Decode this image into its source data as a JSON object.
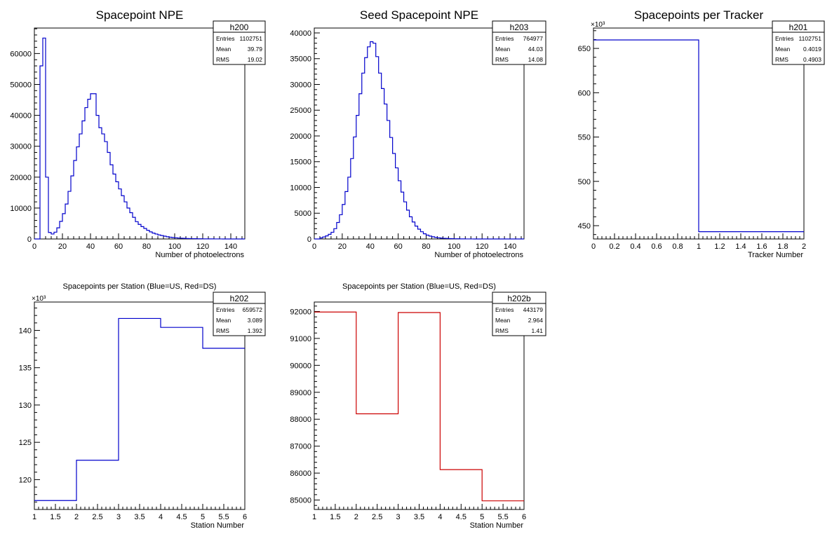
{
  "chart_data": [
    {
      "id": "h200",
      "type": "histogram",
      "title": "Spacepoint NPE",
      "xlabel": "Number of photoelectrons",
      "ylabel": "",
      "xlim": [
        0,
        150
      ],
      "ylim": [
        0,
        68250
      ],
      "y_exponent": "",
      "color": "#0000cc",
      "x_ticks": [
        0,
        20,
        40,
        60,
        80,
        100,
        120,
        140
      ],
      "x_tick_labels": [
        "0",
        "20",
        "40",
        "60",
        "80",
        "100",
        "120",
        "140"
      ],
      "y_ticks": [
        0,
        10000,
        20000,
        30000,
        40000,
        50000,
        60000
      ],
      "y_tick_labels": [
        "0",
        "10000",
        "20000",
        "30000",
        "40000",
        "50000",
        "60000"
      ],
      "bin_width": 2,
      "bin_start": 0,
      "values": [
        0,
        0,
        56000,
        65000,
        20000,
        2100,
        1600,
        2200,
        3600,
        5700,
        8200,
        11300,
        15400,
        20400,
        25400,
        29800,
        34000,
        38200,
        42500,
        45200,
        47000,
        47000,
        40000,
        36000,
        34000,
        31500,
        28000,
        24000,
        21000,
        18500,
        16200,
        14000,
        12000,
        10000,
        8500,
        7000,
        5600,
        4700,
        4000,
        3400,
        2800,
        2300,
        1900,
        1600,
        1300,
        1100,
        900,
        700,
        560,
        460,
        380,
        300,
        240,
        190,
        150,
        120,
        100,
        80,
        60,
        50,
        40,
        30,
        25,
        20,
        15,
        10,
        8,
        6,
        4,
        2,
        0,
        0,
        0,
        0,
        0
      ],
      "stats": {
        "name": "h200",
        "entries": "1102751",
        "mean": "39.79",
        "rms": "19.02"
      }
    },
    {
      "id": "h203",
      "type": "histogram",
      "title": "Seed Spacepoint NPE",
      "xlabel": "Number of photoelectrons",
      "ylabel": "",
      "xlim": [
        0,
        150
      ],
      "ylim": [
        0,
        40950
      ],
      "y_exponent": "",
      "color": "#0000cc",
      "x_ticks": [
        0,
        20,
        40,
        60,
        80,
        100,
        120,
        140
      ],
      "x_tick_labels": [
        "0",
        "20",
        "40",
        "60",
        "80",
        "100",
        "120",
        "140"
      ],
      "y_ticks": [
        0,
        5000,
        10000,
        15000,
        20000,
        25000,
        30000,
        35000,
        40000
      ],
      "y_tick_labels": [
        "0",
        "5000",
        "10000",
        "15000",
        "20000",
        "25000",
        "30000",
        "35000",
        "40000"
      ],
      "bin_width": 2,
      "bin_start": 0,
      "values": [
        0,
        0,
        200,
        400,
        600,
        900,
        1300,
        2000,
        3200,
        4700,
        6700,
        9200,
        12000,
        15600,
        19800,
        24000,
        28200,
        32200,
        35200,
        37300,
        38300,
        38000,
        35400,
        32200,
        29200,
        26200,
        23000,
        19700,
        16600,
        13800,
        11300,
        9100,
        7200,
        5600,
        4300,
        3300,
        2500,
        1900,
        1400,
        1000,
        750,
        560,
        420,
        310,
        230,
        170,
        130,
        100,
        70,
        50,
        40,
        30,
        20,
        15,
        10,
        8,
        6,
        4,
        2,
        0,
        0,
        0,
        0,
        0,
        0,
        0,
        0,
        0,
        0,
        0,
        0,
        0,
        0,
        0,
        0
      ],
      "stats": {
        "name": "h203",
        "entries": "764977",
        "mean": "44.03",
        "rms": "14.08"
      }
    },
    {
      "id": "h201",
      "type": "histogram",
      "title": "Spacepoints per Tracker",
      "xlabel": "Tracker Number",
      "ylabel": "",
      "xlim": [
        0,
        2
      ],
      "ylim": [
        435.0,
        673.0
      ],
      "y_exponent": "×10³",
      "color": "#0000cc",
      "x_ticks": [
        0,
        0.2,
        0.4,
        0.6,
        0.8,
        1,
        1.2,
        1.4,
        1.6,
        1.8,
        2
      ],
      "x_tick_labels": [
        "0",
        "0.2",
        "0.4",
        "0.6",
        "0.8",
        "1",
        "1.2",
        "1.4",
        "1.6",
        "1.8",
        "2"
      ],
      "y_ticks": [
        450,
        500,
        550,
        600,
        650
      ],
      "y_tick_labels": [
        "450",
        "500",
        "550",
        "600",
        "650"
      ],
      "bin_width": 1,
      "bin_start": 0,
      "values": [
        659.572,
        443.179
      ],
      "stats": {
        "name": "h201",
        "entries": "1102751",
        "mean": "0.4019",
        "rms": "0.4903"
      }
    },
    {
      "id": "h202",
      "type": "histogram",
      "title": "Spacepoints per Station (Blue=US, Red=DS)",
      "xlabel": "Station Number",
      "ylabel": "",
      "xlim": [
        1,
        6
      ],
      "ylim": [
        116.0,
        143.8
      ],
      "y_exponent": "×10³",
      "color": "#0000cc",
      "x_ticks": [
        1,
        1.5,
        2,
        2.5,
        3,
        3.5,
        4,
        4.5,
        5,
        5.5,
        6
      ],
      "x_tick_labels": [
        "1",
        "1.5",
        "2",
        "2.5",
        "3",
        "3.5",
        "4",
        "4.5",
        "5",
        "5.5",
        "6"
      ],
      "y_ticks": [
        120,
        125,
        130,
        135,
        140
      ],
      "y_tick_labels": [
        "120",
        "125",
        "130",
        "135",
        "140"
      ],
      "bin_width": 1,
      "bin_start": 1,
      "values": [
        117.2,
        122.6,
        141.6,
        140.4,
        137.6
      ],
      "stats": {
        "name": "h202",
        "entries": "659572",
        "mean": "3.089",
        "rms": "1.392"
      }
    },
    {
      "id": "h202b",
      "type": "histogram",
      "title": "Spacepoints per Station (Blue=US, Red=DS)",
      "xlabel": "Station Number",
      "ylabel": "",
      "xlim": [
        1,
        6
      ],
      "ylim": [
        84650,
        92350
      ],
      "y_exponent": "",
      "color": "#cc0000",
      "x_ticks": [
        1,
        1.5,
        2,
        2.5,
        3,
        3.5,
        4,
        4.5,
        5,
        5.5,
        6
      ],
      "x_tick_labels": [
        "1",
        "1.5",
        "2",
        "2.5",
        "3",
        "3.5",
        "4",
        "4.5",
        "5",
        "5.5",
        "6"
      ],
      "y_ticks": [
        85000,
        86000,
        87000,
        88000,
        89000,
        90000,
        91000,
        92000
      ],
      "y_tick_labels": [
        "85000",
        "86000",
        "87000",
        "88000",
        "89000",
        "90000",
        "91000",
        "92000"
      ],
      "bin_width": 1,
      "bin_start": 1,
      "values": [
        91980,
        88200,
        91960,
        86130,
        84970
      ],
      "stats": {
        "name": "h202b",
        "entries": "443179",
        "mean": "2.964",
        "rms": "1.41"
      }
    }
  ],
  "stats_labels": {
    "entries": "Entries",
    "mean": "Mean",
    "rms": "RMS"
  }
}
